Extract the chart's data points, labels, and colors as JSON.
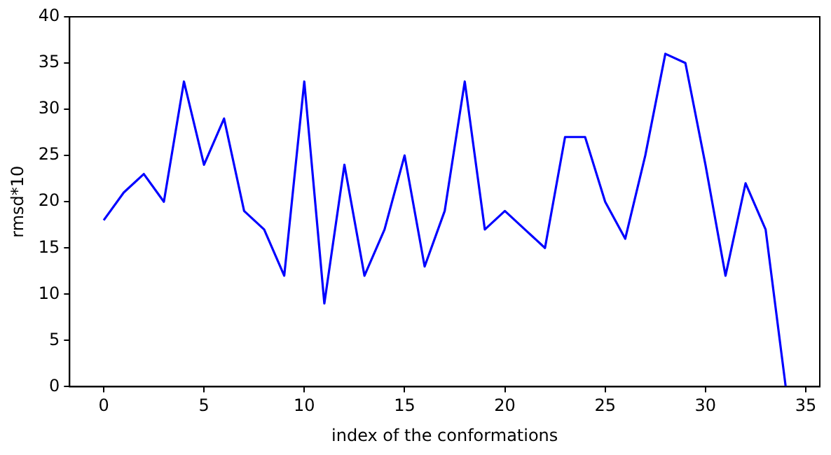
{
  "chart_data": {
    "type": "line",
    "xlabel": "index of the conformations",
    "ylabel": "rmsd*10",
    "x": [
      0,
      1,
      2,
      3,
      4,
      5,
      6,
      7,
      8,
      9,
      10,
      11,
      12,
      13,
      14,
      15,
      16,
      17,
      18,
      19,
      20,
      21,
      22,
      23,
      24,
      25,
      26,
      27,
      28,
      29,
      30,
      31,
      32,
      33,
      34
    ],
    "series": [
      {
        "color": "#0000ff",
        "values": [
          18,
          21,
          23,
          20,
          33,
          24,
          29,
          19,
          17,
          12,
          33,
          9,
          24,
          12,
          17,
          25,
          13,
          19,
          33,
          17,
          19,
          17,
          15,
          27,
          27,
          20,
          16,
          25,
          36,
          35,
          24,
          12,
          22,
          17,
          0
        ]
      }
    ],
    "xlim": [
      -1.7,
      35.7
    ],
    "xticks": [
      0,
      5,
      10,
      15,
      20,
      25,
      30,
      35
    ],
    "ylim": [
      0,
      40
    ],
    "yticks": [
      0,
      5,
      10,
      15,
      20,
      25,
      30,
      35,
      40
    ],
    "grid": false,
    "legend": false,
    "marker": "none",
    "line_style": "solid"
  }
}
